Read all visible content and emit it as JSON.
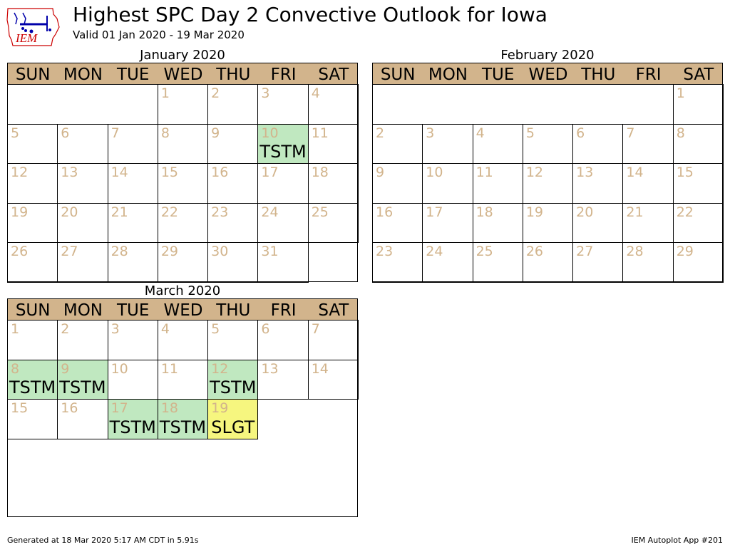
{
  "header": {
    "title": "Highest SPC Day 2 Convective Outlook for Iowa",
    "subtitle": "Valid 01 Jan 2020 - 19 Mar 2020",
    "logo_text": "IEM"
  },
  "footer": {
    "left": "Generated at 18 Mar 2020 5:17 AM CDT in 5.91s",
    "right": "IEM Autoplot App #201"
  },
  "colors": {
    "header_bg": "#d2b48c",
    "daynum": "#d2b48c",
    "TSTM": "#c0e8c0",
    "SLGT": "#f6f67f",
    "logo_red": "#cc0000",
    "logo_blue": "#0000aa"
  },
  "chart_data": {
    "type": "table",
    "weekdays": [
      "SUN",
      "MON",
      "TUE",
      "WED",
      "THU",
      "FRI",
      "SAT"
    ],
    "months": [
      {
        "name": "January 2020",
        "first_weekday": 3,
        "days": 31,
        "rows": 5,
        "outlooks": [
          {
            "day": 10,
            "category": "TSTM"
          }
        ]
      },
      {
        "name": "February 2020",
        "first_weekday": 6,
        "days": 29,
        "rows": 5,
        "outlooks": []
      },
      {
        "name": "March 2020",
        "first_weekday": 0,
        "days": 19,
        "rows": 5,
        "outlooks": [
          {
            "day": 8,
            "category": "TSTM"
          },
          {
            "day": 9,
            "category": "TSTM"
          },
          {
            "day": 12,
            "category": "TSTM"
          },
          {
            "day": 17,
            "category": "TSTM"
          },
          {
            "day": 18,
            "category": "TSTM"
          },
          {
            "day": 19,
            "category": "SLGT"
          }
        ]
      }
    ]
  }
}
